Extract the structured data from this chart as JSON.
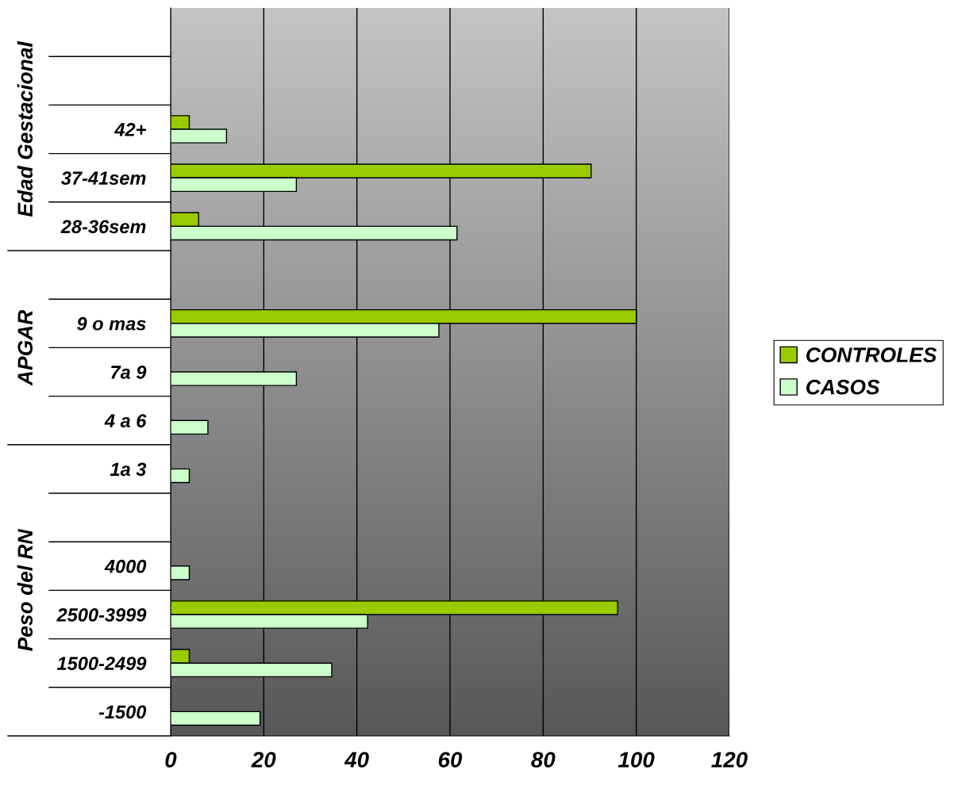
{
  "chart_data": {
    "type": "bar",
    "orientation": "horizontal",
    "categories": [
      null,
      null,
      "42+",
      "37-41sem",
      "28-36sem",
      null,
      "9 o mas",
      "7a 9",
      "4 a 6",
      "1a 3",
      null,
      "4000",
      "2500-3999",
      "1500-2499",
      "-1500"
    ],
    "series": [
      {
        "name": "CONTROLES",
        "color": "#99cc00",
        "values": [
          null,
          null,
          4,
          90.3,
          6,
          null,
          100,
          null,
          null,
          null,
          null,
          null,
          96,
          4,
          null
        ]
      },
      {
        "name": "CASOS",
        "color": "#ccffcc",
        "values": [
          null,
          null,
          12,
          27,
          61.5,
          null,
          57.6,
          27,
          8,
          4,
          null,
          4,
          42.3,
          34.6,
          19.2
        ]
      }
    ],
    "xlim": [
      0,
      120
    ],
    "xticks": [
      0,
      20,
      40,
      60,
      80,
      100,
      120
    ],
    "grid": "x",
    "legend": "right",
    "annotations": [
      "Edad Gestacional",
      "APGAR",
      "Peso del RN"
    ]
  }
}
